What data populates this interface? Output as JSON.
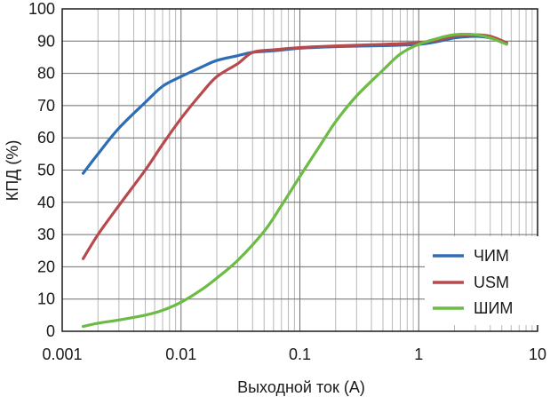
{
  "chart_data": {
    "type": "line",
    "title": "",
    "xlabel": "Выходной ток (А)",
    "ylabel": "КПД (%)",
    "xscale": "log",
    "xlim": [
      0.001,
      10
    ],
    "ylim": [
      0,
      100
    ],
    "x_ticks": [
      0.001,
      0.01,
      0.1,
      1,
      10
    ],
    "x_tick_labels": [
      "0.001",
      "0.01",
      "0.1",
      "1",
      "10"
    ],
    "y_ticks": [
      0,
      10,
      20,
      30,
      40,
      50,
      60,
      70,
      80,
      90,
      100
    ],
    "y_tick_labels": [
      "0",
      "10",
      "20",
      "30",
      "40",
      "50",
      "60",
      "70",
      "80",
      "90",
      "100"
    ],
    "grid": true,
    "legend_position": "bottom-right",
    "series": [
      {
        "name": "ЧИМ",
        "color": "#2d6db5",
        "x": [
          0.0015,
          0.002,
          0.003,
          0.005,
          0.007,
          0.01,
          0.015,
          0.02,
          0.03,
          0.04,
          0.06,
          0.1,
          0.2,
          0.5,
          1,
          1.5,
          2,
          3,
          4,
          5.5
        ],
        "y": [
          49,
          55,
          63,
          71,
          76,
          79,
          82,
          84,
          85.5,
          86.5,
          87,
          87.8,
          88.3,
          88.6,
          89,
          90,
          91,
          91.5,
          91,
          89.5
        ]
      },
      {
        "name": "USM",
        "color": "#b84a4e",
        "x": [
          0.0015,
          0.002,
          0.003,
          0.005,
          0.007,
          0.01,
          0.015,
          0.02,
          0.03,
          0.04,
          0.06,
          0.1,
          0.2,
          0.5,
          1,
          1.5,
          2,
          3,
          4,
          5.5
        ],
        "y": [
          22.5,
          30,
          39,
          50,
          58,
          66,
          74,
          79,
          83,
          86.5,
          87.3,
          88,
          88.5,
          89,
          89.5,
          90.5,
          91.5,
          92,
          91.5,
          89.5
        ]
      },
      {
        "name": "ШИМ",
        "color": "#6cbb44",
        "x": [
          0.0015,
          0.002,
          0.003,
          0.005,
          0.007,
          0.01,
          0.015,
          0.02,
          0.03,
          0.05,
          0.07,
          0.1,
          0.15,
          0.2,
          0.3,
          0.5,
          0.7,
          1,
          1.5,
          2,
          3,
          4,
          5.5
        ],
        "y": [
          1.5,
          2.5,
          3.5,
          5,
          6.5,
          9,
          13,
          16.5,
          22,
          31,
          39,
          48,
          58,
          65,
          73,
          81,
          86,
          89,
          91,
          92,
          92,
          91,
          89
        ]
      }
    ]
  }
}
